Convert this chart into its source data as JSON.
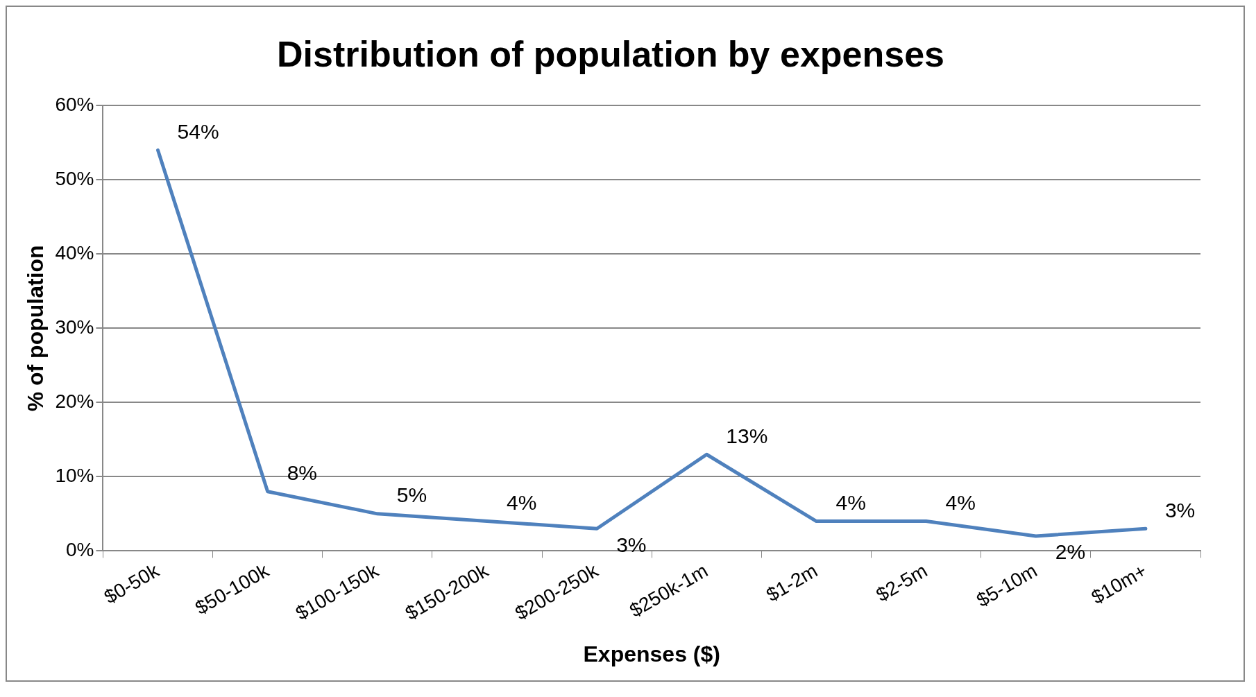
{
  "chart_data": {
    "type": "line",
    "title": "Distribution of population by expenses",
    "xlabel": "Expenses ($)",
    "ylabel": "% of population",
    "categories": [
      "$0-50k",
      "$50-100k",
      "$100-150k",
      "$150-200k",
      "$200-250k",
      "$250k-1m",
      "$1-2m",
      "$2-5m",
      "$5-10m",
      "$10m+"
    ],
    "series": [
      {
        "color": "#4f81bd",
        "values": [
          54,
          8,
          5,
          4,
          3,
          13,
          4,
          4,
          2,
          3
        ],
        "value_labels": [
          "54%",
          "8%",
          "5%",
          "4%",
          "3%",
          "13%",
          "4%",
          "4%",
          "2%",
          "3%"
        ]
      }
    ],
    "ylim": [
      0,
      60
    ],
    "yticks": [
      {
        "value": 0,
        "label": "0%"
      },
      {
        "value": 10,
        "label": "10%"
      },
      {
        "value": 20,
        "label": "20%"
      },
      {
        "value": 30,
        "label": "30%"
      },
      {
        "value": 40,
        "label": "40%"
      },
      {
        "value": 50,
        "label": "50%"
      },
      {
        "value": 60,
        "label": "60%"
      }
    ],
    "grid": "y",
    "legend": false,
    "marker": "none",
    "line_style": "solid"
  }
}
